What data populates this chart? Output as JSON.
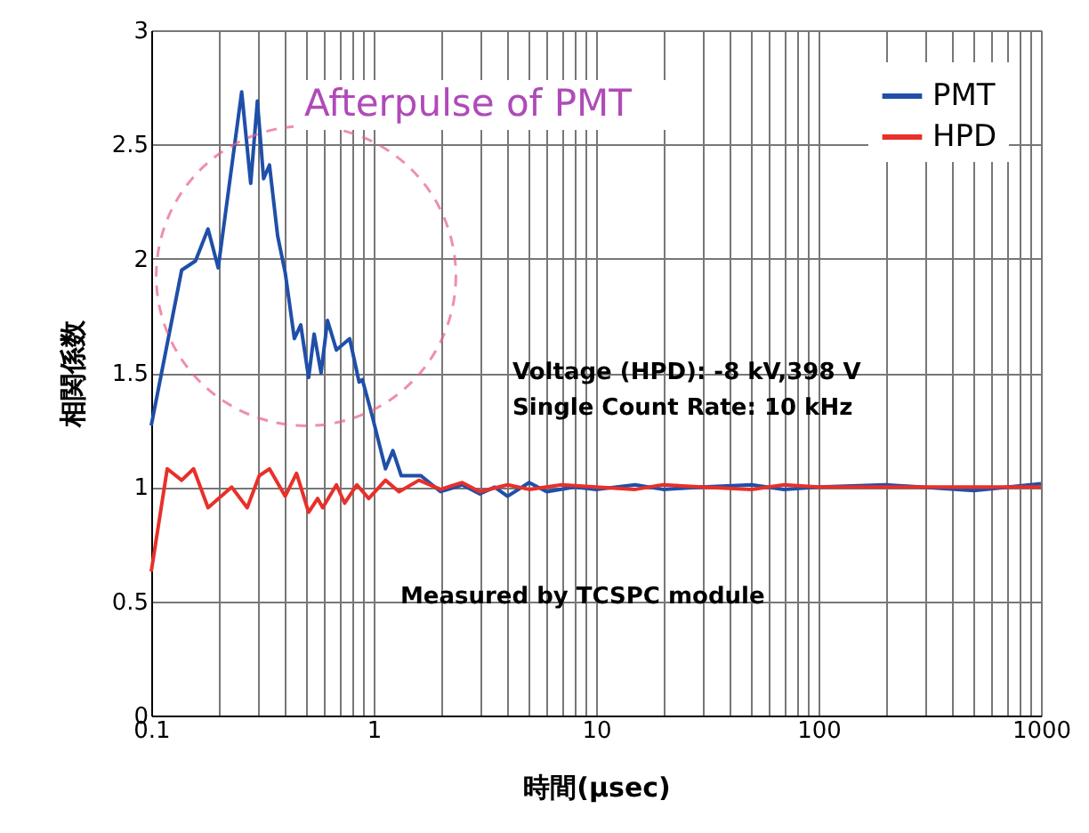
{
  "chart_data": {
    "type": "line",
    "xlabel": "時間(μsec)",
    "ylabel": "相関係数",
    "log": "x",
    "grid": true,
    "legend": "top right",
    "line_style": "solid",
    "marker": "none",
    "xlim": [
      0.1,
      1000
    ],
    "ylim": [
      0,
      3
    ],
    "xticks": [
      0.1,
      {
        "value": 0.2,
        "label": null
      },
      {
        "value": 0.3,
        "label": null
      },
      {
        "value": 0.4,
        "label": null
      },
      {
        "value": 0.5,
        "label": null
      },
      {
        "value": 0.6,
        "label": null
      },
      {
        "value": 0.7,
        "label": null
      },
      {
        "value": 0.8,
        "label": null
      },
      {
        "value": 0.9,
        "label": null
      },
      1,
      {
        "value": 2,
        "label": null
      },
      {
        "value": 3,
        "label": null
      },
      {
        "value": 4,
        "label": null
      },
      {
        "value": 5,
        "label": null
      },
      {
        "value": 6,
        "label": null
      },
      {
        "value": 7,
        "label": null
      },
      {
        "value": 8,
        "label": null
      },
      {
        "value": 9,
        "label": null
      },
      10,
      {
        "value": 20,
        "label": null
      },
      {
        "value": 30,
        "label": null
      },
      {
        "value": 40,
        "label": null
      },
      {
        "value": 50,
        "label": null
      },
      {
        "value": 60,
        "label": null
      },
      {
        "value": 70,
        "label": null
      },
      {
        "value": 80,
        "label": null
      },
      {
        "value": 90,
        "label": null
      },
      100,
      {
        "value": 200,
        "label": null
      },
      {
        "value": 300,
        "label": null
      },
      {
        "value": 400,
        "label": null
      },
      {
        "value": 500,
        "label": null
      },
      {
        "value": 600,
        "label": null
      },
      {
        "value": 700,
        "label": null
      },
      {
        "value": 800,
        "label": null
      },
      {
        "value": 900,
        "label": null
      },
      1000
    ],
    "yticks": [
      0,
      0.5,
      1,
      1.5,
      2,
      2.5,
      3
    ],
    "annotations": [
      "Afterpulse of PMT",
      "Voltage (HPD): -8 kV,398 V",
      "Single Count Rate: 10 kHz",
      "Measured by TCSPC module"
    ],
    "series": [
      {
        "name": "PMT",
        "color": "#1f4fa8",
        "x": [
          0.1,
          0.137,
          0.158,
          0.18,
          0.2,
          0.255,
          0.28,
          0.3,
          0.32,
          0.34,
          0.37,
          0.4,
          0.44,
          0.47,
          0.51,
          0.54,
          0.58,
          0.62,
          0.68,
          0.78,
          0.86,
          0.89,
          0.98,
          1.13,
          1.22,
          1.33,
          1.63,
          2,
          2.5,
          3,
          3.5,
          4,
          5,
          6,
          8,
          10,
          15,
          20,
          30,
          50,
          70,
          100,
          200,
          500,
          1000
        ],
        "values": [
          1.27,
          1.95,
          1.99,
          2.13,
          1.96,
          2.73,
          2.33,
          2.69,
          2.35,
          2.41,
          2.1,
          1.94,
          1.65,
          1.71,
          1.48,
          1.67,
          1.5,
          1.73,
          1.6,
          1.65,
          1.46,
          1.47,
          1.32,
          1.08,
          1.16,
          1.05,
          1.05,
          0.98,
          1.01,
          0.97,
          1.0,
          0.96,
          1.02,
          0.98,
          1.0,
          0.99,
          1.01,
          0.99,
          1.0,
          1.01,
          0.99,
          1.0,
          1.01,
          0.985,
          1.015
        ]
      },
      {
        "name": "HPD",
        "color": "#e8302a",
        "x": [
          0.1,
          0.118,
          0.137,
          0.155,
          0.18,
          0.23,
          0.27,
          0.306,
          0.34,
          0.4,
          0.45,
          0.51,
          0.56,
          0.59,
          0.68,
          0.74,
          0.84,
          0.95,
          1.13,
          1.3,
          1.6,
          2,
          2.5,
          3,
          4,
          5,
          7,
          10,
          15,
          20,
          30,
          50,
          70,
          100,
          200,
          500,
          1000
        ],
        "values": [
          0.63,
          1.08,
          1.03,
          1.08,
          0.91,
          1.0,
          0.91,
          1.05,
          1.08,
          0.96,
          1.06,
          0.89,
          0.95,
          0.91,
          1.01,
          0.93,
          1.01,
          0.95,
          1.03,
          0.98,
          1.03,
          0.99,
          1.02,
          0.98,
          1.01,
          0.99,
          1.01,
          1.0,
          0.99,
          1.01,
          1.0,
          0.99,
          1.01,
          1.0,
          1.0,
          1.0,
          1.0
        ]
      }
    ]
  }
}
